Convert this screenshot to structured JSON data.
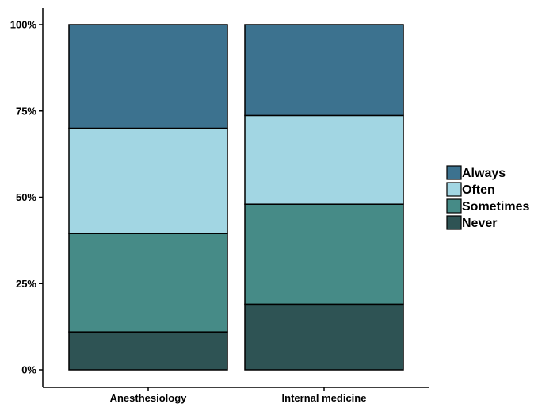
{
  "chart_data": {
    "type": "bar",
    "stacked": true,
    "title": "",
    "xlabel": "",
    "ylabel": "",
    "categories": [
      "Anesthesiology",
      "Internal medicine"
    ],
    "ylim": [
      0,
      100
    ],
    "yticks": [
      0,
      25,
      50,
      75,
      100
    ],
    "ytick_labels": [
      "0%",
      "25%",
      "50%",
      "75%",
      "100%"
    ],
    "grid": false,
    "legend_position": "right",
    "series": [
      {
        "name": "Never",
        "color": "#2e5354",
        "values": [
          11,
          19
        ]
      },
      {
        "name": "Sometimes",
        "color": "#468b87",
        "values": [
          28.5,
          29
        ]
      },
      {
        "name": "Often",
        "color": "#a2d6e3",
        "values": [
          30.5,
          25.7
        ]
      },
      {
        "name": "Always",
        "color": "#3c728f",
        "values": [
          30,
          26.3
        ]
      }
    ],
    "legend_order": [
      "Always",
      "Often",
      "Sometimes",
      "Never"
    ]
  }
}
